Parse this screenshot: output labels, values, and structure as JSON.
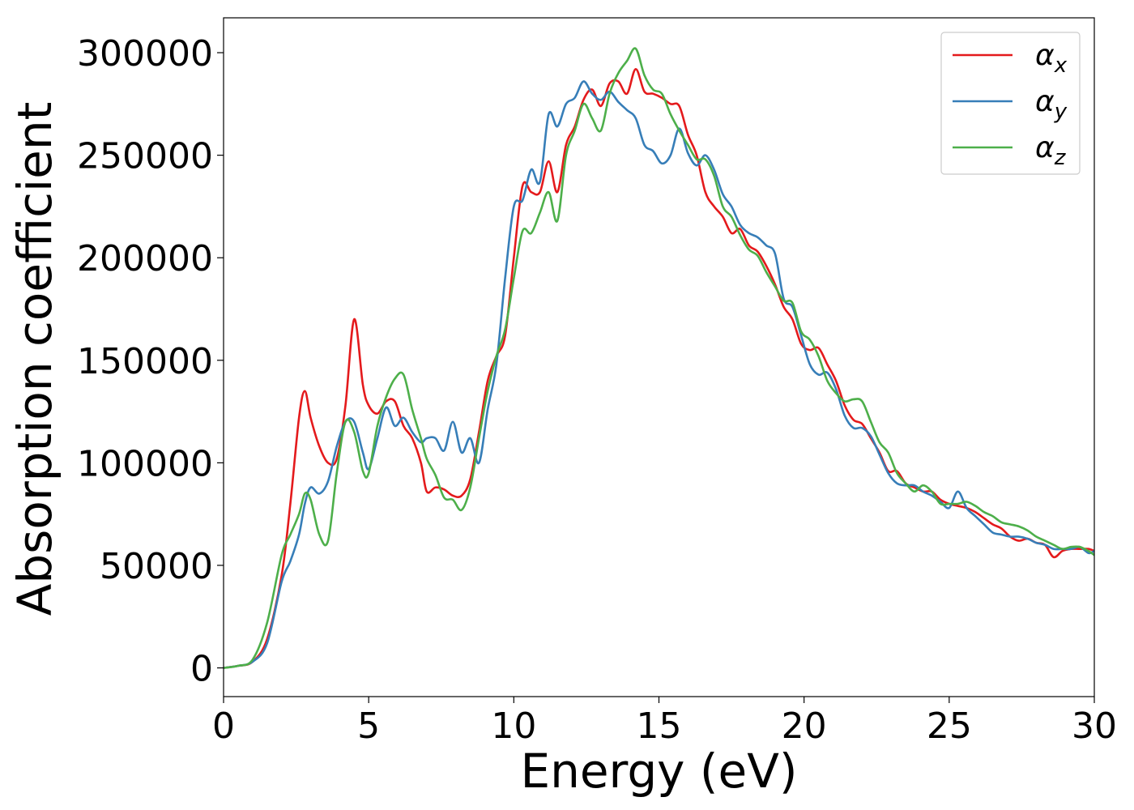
{
  "chart_data": {
    "type": "line",
    "title": "",
    "xlabel": "Energy (eV)",
    "ylabel": "Absorption coefficient",
    "xlim": [
      0,
      30
    ],
    "ylim": [
      -14000,
      317000
    ],
    "xticks": [
      0,
      5,
      10,
      15,
      20,
      25,
      30
    ],
    "xtick_labels": [
      "0",
      "5",
      "10",
      "15",
      "20",
      "25",
      "30"
    ],
    "yticks": [
      0,
      50000,
      100000,
      150000,
      200000,
      250000,
      300000
    ],
    "ytick_labels": [
      "0",
      "50000",
      "100000",
      "150000",
      "200000",
      "250000",
      "300000"
    ],
    "grid": false,
    "legend": "top-right",
    "series": [
      {
        "name": "αx",
        "base": "α",
        "sub": "x",
        "color": "#e41a1c",
        "x": [
          0,
          0.5,
          1.0,
          1.5,
          2.0,
          2.3,
          2.6,
          2.8,
          3.0,
          3.3,
          3.6,
          3.9,
          4.2,
          4.5,
          4.8,
          5.0,
          5.3,
          5.6,
          5.9,
          6.2,
          6.5,
          6.8,
          7.0,
          7.3,
          7.6,
          7.9,
          8.2,
          8.5,
          8.8,
          9.1,
          9.4,
          9.7,
          10.0,
          10.3,
          10.6,
          10.9,
          11.2,
          11.5,
          11.8,
          12.1,
          12.4,
          12.7,
          13.0,
          13.3,
          13.6,
          13.9,
          14.2,
          14.5,
          14.8,
          15.1,
          15.4,
          15.7,
          16.0,
          16.3,
          16.6,
          16.9,
          17.2,
          17.5,
          17.8,
          18.1,
          18.4,
          18.7,
          19.0,
          19.3,
          19.6,
          19.9,
          20.2,
          20.5,
          20.8,
          21.1,
          21.4,
          21.7,
          22.0,
          22.3,
          22.6,
          22.9,
          23.2,
          23.5,
          23.8,
          24.1,
          24.4,
          24.7,
          25.0,
          25.3,
          25.6,
          25.9,
          26.2,
          26.5,
          26.8,
          27.1,
          27.4,
          27.7,
          28.0,
          28.3,
          28.6,
          28.9,
          29.2,
          29.5,
          29.8,
          30.0
        ],
        "y": [
          0,
          1000,
          3000,
          14000,
          45000,
          80000,
          122000,
          135000,
          122000,
          108000,
          100000,
          102000,
          128000,
          170000,
          138000,
          128000,
          124000,
          130000,
          130000,
          118000,
          112000,
          100000,
          86000,
          88000,
          87000,
          84000,
          84000,
          92000,
          115000,
          140000,
          152000,
          162000,
          200000,
          235000,
          232000,
          232000,
          247000,
          232000,
          255000,
          264000,
          277000,
          282000,
          274000,
          285000,
          286000,
          280000,
          292000,
          281000,
          280000,
          278000,
          275000,
          274000,
          260000,
          250000,
          232000,
          225000,
          220000,
          212000,
          214000,
          206000,
          203000,
          196000,
          187000,
          176000,
          170000,
          158000,
          155000,
          156000,
          148000,
          140000,
          128000,
          121000,
          119000,
          112000,
          105000,
          96000,
          96000,
          90000,
          88000,
          86000,
          86000,
          82000,
          80000,
          79000,
          78000,
          76000,
          73000,
          70000,
          68000,
          64000,
          62000,
          63000,
          61000,
          60000,
          54000,
          57000,
          58000,
          58000,
          58000,
          57000
        ]
      },
      {
        "name": "αy",
        "base": "α",
        "sub": "y",
        "color": "#377eb8",
        "x": [
          0,
          0.5,
          1.0,
          1.5,
          2.0,
          2.3,
          2.6,
          2.8,
          3.0,
          3.3,
          3.6,
          3.9,
          4.2,
          4.5,
          4.8,
          5.0,
          5.3,
          5.6,
          5.9,
          6.2,
          6.5,
          6.8,
          7.0,
          7.3,
          7.6,
          7.9,
          8.2,
          8.5,
          8.8,
          9.1,
          9.4,
          9.7,
          10.0,
          10.3,
          10.6,
          10.9,
          11.2,
          11.5,
          11.8,
          12.1,
          12.4,
          12.7,
          13.0,
          13.3,
          13.6,
          13.9,
          14.2,
          14.5,
          14.8,
          15.1,
          15.4,
          15.7,
          16.0,
          16.3,
          16.6,
          16.9,
          17.2,
          17.5,
          17.8,
          18.1,
          18.4,
          18.7,
          19.0,
          19.3,
          19.6,
          19.9,
          20.2,
          20.5,
          20.8,
          21.1,
          21.4,
          21.7,
          22.0,
          22.3,
          22.6,
          22.9,
          23.2,
          23.5,
          23.8,
          24.1,
          24.4,
          24.7,
          25.0,
          25.3,
          25.6,
          25.9,
          26.2,
          26.5,
          26.8,
          27.1,
          27.4,
          27.7,
          28.0,
          28.3,
          28.6,
          28.9,
          29.2,
          29.5,
          29.8,
          30.0
        ],
        "y": [
          0,
          1000,
          3000,
          12000,
          42000,
          52000,
          65000,
          80000,
          88000,
          85000,
          91000,
          108000,
          120000,
          120000,
          105000,
          97000,
          112000,
          127000,
          118000,
          122000,
          115000,
          110000,
          112000,
          112000,
          106000,
          120000,
          105000,
          112000,
          100000,
          126000,
          148000,
          190000,
          225000,
          228000,
          243000,
          237000,
          270000,
          264000,
          275000,
          278000,
          286000,
          280000,
          277000,
          281000,
          276000,
          272000,
          268000,
          255000,
          252000,
          246000,
          250000,
          263000,
          251000,
          245000,
          250000,
          243000,
          231000,
          225000,
          216000,
          212000,
          210000,
          206000,
          202000,
          180000,
          176000,
          162000,
          148000,
          143000,
          144000,
          136000,
          123000,
          117000,
          117000,
          113000,
          104000,
          95000,
          90000,
          89000,
          89000,
          86000,
          84000,
          81000,
          78000,
          86000,
          78000,
          74000,
          70000,
          66000,
          65000,
          64000,
          64000,
          63000,
          61000,
          60000,
          58000,
          58000,
          58000,
          59000,
          56000,
          57000
        ]
      },
      {
        "name": "αz",
        "base": "α",
        "sub": "z",
        "color": "#4daf4a",
        "x": [
          0,
          0.5,
          1.0,
          1.5,
          2.0,
          2.3,
          2.6,
          2.8,
          3.0,
          3.3,
          3.6,
          3.9,
          4.2,
          4.5,
          4.8,
          5.0,
          5.3,
          5.6,
          5.9,
          6.2,
          6.5,
          6.8,
          7.0,
          7.3,
          7.6,
          7.9,
          8.2,
          8.5,
          8.8,
          9.1,
          9.4,
          9.7,
          10.0,
          10.3,
          10.6,
          10.9,
          11.2,
          11.5,
          11.8,
          12.1,
          12.4,
          12.7,
          13.0,
          13.3,
          13.6,
          13.9,
          14.2,
          14.5,
          14.8,
          15.1,
          15.4,
          15.7,
          16.0,
          16.3,
          16.6,
          16.9,
          17.2,
          17.5,
          17.8,
          18.1,
          18.4,
          18.7,
          19.0,
          19.3,
          19.6,
          19.9,
          20.2,
          20.5,
          20.8,
          21.1,
          21.4,
          21.7,
          22.0,
          22.3,
          22.6,
          22.9,
          23.2,
          23.5,
          23.8,
          24.1,
          24.4,
          24.7,
          25.0,
          25.3,
          25.6,
          25.9,
          26.2,
          26.5,
          26.8,
          27.1,
          27.4,
          27.7,
          28.0,
          28.3,
          28.6,
          28.9,
          29.2,
          29.5,
          29.8,
          30.0
        ],
        "y": [
          0,
          1000,
          4000,
          22000,
          55000,
          65000,
          75000,
          85000,
          82000,
          65000,
          62000,
          95000,
          120000,
          115000,
          96000,
          95000,
          118000,
          132000,
          141000,
          143000,
          126000,
          112000,
          102000,
          94000,
          83000,
          82000,
          77000,
          88000,
          112000,
          135000,
          152000,
          165000,
          190000,
          213000,
          212000,
          222000,
          232000,
          218000,
          250000,
          262000,
          275000,
          268000,
          262000,
          280000,
          290000,
          296000,
          302000,
          289000,
          282000,
          280000,
          270000,
          262000,
          255000,
          248000,
          248000,
          240000,
          225000,
          220000,
          211000,
          204000,
          201000,
          193000,
          186000,
          179000,
          178000,
          164000,
          160000,
          152000,
          140000,
          134000,
          130000,
          131000,
          130000,
          120000,
          110000,
          105000,
          95000,
          90000,
          86000,
          89000,
          86000,
          80000,
          80000,
          80000,
          81000,
          79000,
          76000,
          74000,
          71000,
          70000,
          69000,
          67000,
          64000,
          62000,
          60000,
          58000,
          59000,
          59000,
          57000,
          55000
        ]
      }
    ]
  }
}
